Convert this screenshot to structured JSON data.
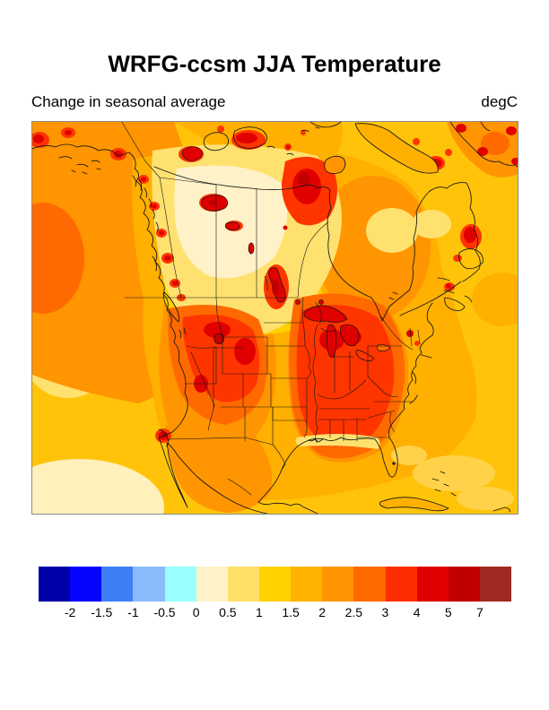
{
  "figure": {
    "title": "WRFG-ccsm JJA Temperature",
    "subtitle": "Change in seasonal average",
    "units_label": "degC"
  },
  "chart_data": {
    "type": "heatmap",
    "title": "WRFG-ccsm JJA Temperature",
    "subtitle": "Change in seasonal average",
    "units": "degC",
    "geography": "North America (filled-contour map with coastlines, state and provincial borders)",
    "value_range_shown": [
      -2,
      7
    ],
    "colorbar_labels": [
      "-2",
      "-1.5",
      "-1",
      "-0.5",
      "0",
      "0.5",
      "1",
      "1.5",
      "2",
      "2.5",
      "3",
      "4",
      "5",
      "7"
    ],
    "colorbar_colors": [
      "#0000A8",
      "#0505FF",
      "#3E7FF8",
      "#8BBBFC",
      "#99FFFF",
      "#FFF2C8",
      "#FFDF66",
      "#FFD100",
      "#FFB300",
      "#FF9500",
      "#FF6A00",
      "#FF2E00",
      "#E10000",
      "#C00000",
      "#A02A22"
    ],
    "summary": "Simulated JJA temperature change is positive everywhere shown: about +1 to +1.5 degC over central Canada and parts of the oceans, +1.5 to +2.5 degC over most oceans and coasts, +2.5 to +4 degC over the western US interior, Upper Midwest and Southeast US, and local maxima of +4 degC and greater over the Great Lakes, large Canadian lakes (Great Bear, Great Slave, Winnipeg), the area west of Hudson Bay, coastal Alaska/BC, Labrador and southern Greenland."
  }
}
